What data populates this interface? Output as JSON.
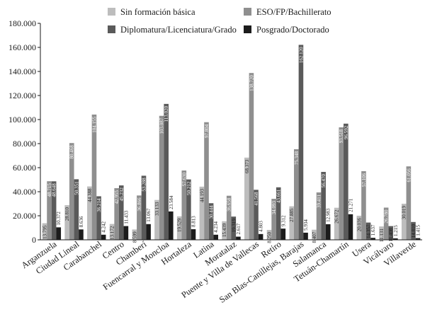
{
  "chart_data": {
    "type": "bar",
    "title": "",
    "xlabel": "",
    "ylabel": "",
    "ylim": [
      0,
      180000
    ],
    "yticks": [
      "0",
      "20.000",
      "40.000",
      "60.000",
      "80.000",
      "100.000",
      "120.000",
      "140.000",
      "160.000",
      "180.000"
    ],
    "grid": false,
    "legend_position": "top",
    "categories": [
      "Arganzuela",
      "Ciudad Lineal",
      "Carabanchel",
      "Centro",
      "Chamberí",
      "Fuencarral y Moncloa",
      "Hortaleza",
      "Latina",
      "Moratalaz",
      "Puente y Villa de Vallecas",
      "Retiro",
      "San Blas-Canillejas, Barajas",
      "Salamanca",
      "Tetuán-Chamartín",
      "Usera",
      "Vicálvaro",
      "Villaverde"
    ],
    "series": [
      {
        "name": "Sin formación básica",
        "color": "#bdbdbd",
        "values": [
          13795,
          28810,
          44388,
          13172,
          8599,
          33133,
          19529,
          44193,
          15439,
          68373,
          8250,
          27885,
          8407,
          26672,
          20036,
          11131,
          30019
        ],
        "labels": [
          "13.795",
          "28.810",
          "44.388",
          "13.172",
          "8.599",
          "33.133",
          "19.529",
          "44.193",
          "15.439",
          "68.373",
          "8.250",
          "27.885",
          "8.407",
          "26.672",
          "20.036",
          "11.131",
          "30.019"
        ]
      },
      {
        "name": "ESO/FP/Bachillerato",
        "color": "#8f8f8f",
        "values": [
          48715,
          80468,
          104155,
          42955,
          36866,
          103087,
          57630,
          97804,
          36658,
          138720,
          34093,
          75348,
          39411,
          93518,
          57106,
          26780,
          61056
        ],
        "labels": [
          "48.715",
          "80.468",
          "104.155",
          "42.955",
          "36.866",
          "103.087",
          "57.630",
          "97.804",
          "36.658",
          "138.720",
          "34.093",
          "75.348",
          "39.411",
          "93.518",
          "57.106",
          "26.780",
          "61.056"
        ]
      },
      {
        "name": "Diplomatura/Licenciatura/Grado",
        "color": "#5a5a5a",
        "values": [
          48648,
          50351,
          36214,
          45232,
          53288,
          113020,
          50212,
          30444,
          19319,
          41568,
          43661,
          162120,
          56470,
          96592,
          14357,
          11408,
          14810
        ],
        "labels": [
          "48.648",
          "50.351",
          "36.214",
          "45.232",
          "53.288",
          "113.020",
          "50.212",
          "30.444",
          "19.319",
          "41.568",
          "43.661",
          "162.120",
          "56.470",
          "96.592",
          "14.357",
          "11.408",
          "14.810"
        ]
      },
      {
        "name": "Posgrado/Doctorado",
        "color": "#1c1c1c",
        "values": [
          10372,
          8636,
          4242,
          11433,
          13067,
          23584,
          8813,
          4234,
          2617,
          4803,
          9312,
          5934,
          12983,
          21271,
          1637,
          1215,
          1415
        ],
        "labels": [
          "10.372",
          "8.636",
          "4.242",
          "11.433",
          "13.067",
          "23.584",
          "8.813",
          "4.234",
          "2.617",
          "4.803",
          "9.312",
          "5.934",
          "12.983",
          "21.271",
          "1.637",
          "1.215",
          "1.415"
        ]
      }
    ]
  }
}
